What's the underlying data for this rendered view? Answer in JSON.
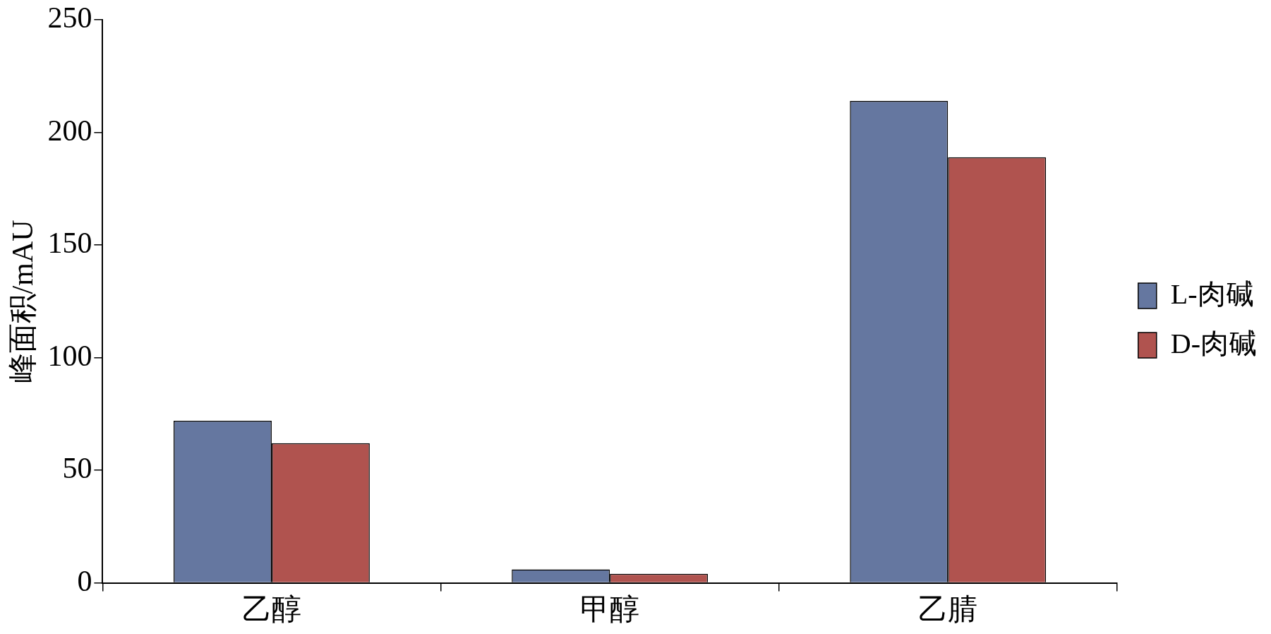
{
  "chart_data": {
    "type": "bar",
    "ylabel": "峰面积/mAU",
    "categories": [
      "乙醇",
      "甲醇",
      "乙腈"
    ],
    "series": [
      {
        "name": "L-肉碱",
        "color": "#6577a0",
        "values": [
          72,
          6,
          214
        ]
      },
      {
        "name": "D-肉碱",
        "color": "#b0534f",
        "values": [
          62,
          4,
          189
        ]
      }
    ],
    "ylim": [
      0,
      250
    ],
    "yticks": [
      0,
      50,
      100,
      150,
      200,
      250
    ],
    "grid": false,
    "legend": "right"
  }
}
